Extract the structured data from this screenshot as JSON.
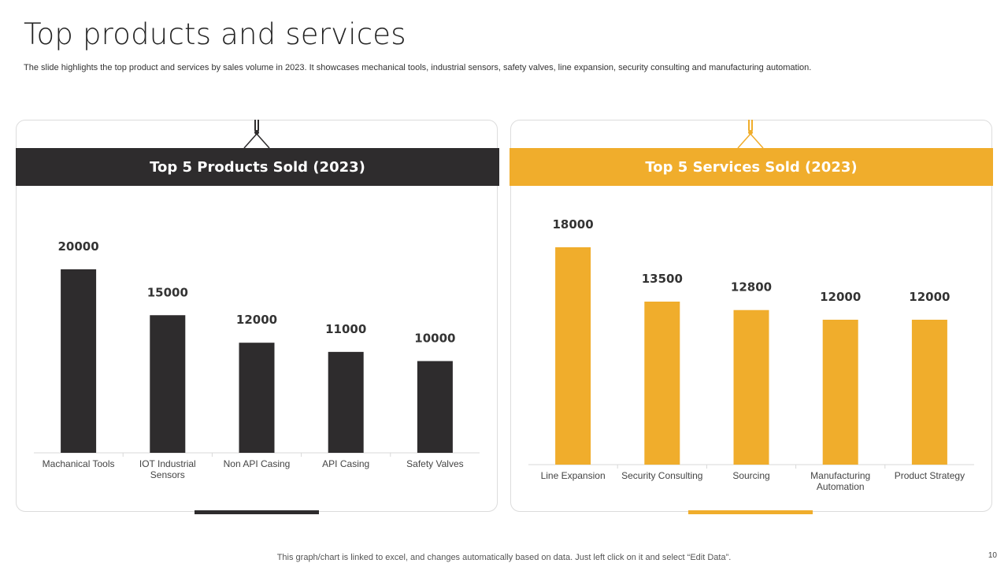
{
  "slide": {
    "title": "Top products and services",
    "subtitle": "The slide highlights the top product and services by sales volume in 2023. It showcases mechanical tools, industrial sensors, safety valves,  line expansion, security consulting and manufacturing automation.",
    "footer_note": "This graph/chart is linked to excel,  and changes automatically based on data. Just left click on it and select “Edit Data”.",
    "page_number": "10"
  },
  "colors": {
    "dark": "#2e2c2d",
    "accent": "#f0ad2c",
    "axis": "#d9d9d9"
  },
  "chart_data": [
    {
      "type": "bar",
      "title": "Top 5 Products Sold (2023)",
      "categories": [
        "Machanical Tools",
        "IOT Industrial\nSensors",
        "Non API Casing",
        "API Casing",
        "Safety Valves"
      ],
      "values": [
        20000,
        15000,
        12000,
        11000,
        10000
      ],
      "ylim": [
        0,
        20000
      ],
      "xlabel": "",
      "ylabel": "",
      "grid": false,
      "color": "#2e2c2d"
    },
    {
      "type": "bar",
      "title": "Top 5 Services Sold (2023)",
      "categories": [
        "Line Expansion",
        "Security Consulting",
        "Sourcing",
        "Manufacturing\nAutomation",
        "Product Strategy"
      ],
      "values": [
        18000,
        13500,
        12800,
        12000,
        12000
      ],
      "ylim": [
        0,
        18000
      ],
      "xlabel": "",
      "ylabel": "",
      "grid": false,
      "color": "#f0ad2c"
    }
  ]
}
